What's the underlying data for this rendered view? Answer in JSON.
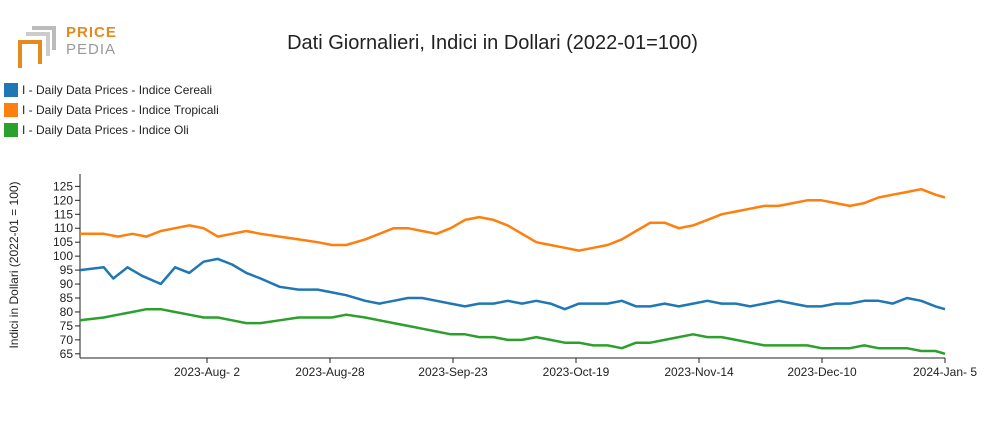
{
  "logo": {
    "line1": "PRICE",
    "line2": "PEDIA",
    "accent_color": "#e58a1f",
    "secondary_color": "#999999"
  },
  "chart_data": {
    "type": "line",
    "title": "Dati Giornalieri, Indici in Dollari (2022-01=100)",
    "xlabel": "",
    "ylabel": "Indici in Dollari (2022-01 = 100)",
    "x_tick_labels": [
      "2023-Aug- 2",
      "2023-Aug-28",
      "2023-Sep-23",
      "2023-Oct-19",
      "2023-Nov-14",
      "2023-Dec-10",
      "2024-Jan- 5"
    ],
    "y_ticks": [
      65,
      70,
      75,
      80,
      85,
      90,
      95,
      100,
      105,
      110,
      115,
      120,
      125
    ],
    "ylim": [
      63.5,
      128
    ],
    "x_range_days": [
      0,
      182
    ],
    "legend_position": "top-left",
    "grid": false,
    "series": [
      {
        "name": "I - Daily Data Prices - Indice Cereali",
        "color": "#1f77b4",
        "x": [
          0,
          5,
          7,
          10,
          13,
          17,
          20,
          23,
          26,
          29,
          32,
          35,
          38,
          42,
          46,
          50,
          53,
          56,
          60,
          63,
          66,
          69,
          72,
          75,
          78,
          81,
          84,
          87,
          90,
          93,
          96,
          99,
          102,
          105,
          108,
          111,
          114,
          117,
          120,
          123,
          126,
          129,
          132,
          135,
          138,
          141,
          144,
          147,
          150,
          153,
          156,
          159,
          162,
          165,
          168,
          171,
          174,
          177,
          180,
          182
        ],
        "y": [
          95,
          96,
          92,
          96,
          93,
          90,
          96,
          94,
          98,
          99,
          97,
          94,
          92,
          89,
          88,
          88,
          87,
          86,
          84,
          83,
          84,
          85,
          85,
          84,
          83,
          82,
          83,
          83,
          84,
          83,
          84,
          83,
          81,
          83,
          83,
          83,
          84,
          82,
          82,
          83,
          82,
          83,
          84,
          83,
          83,
          82,
          83,
          84,
          83,
          82,
          82,
          83,
          83,
          84,
          84,
          83,
          85,
          84,
          82,
          81
        ]
      },
      {
        "name": "I - Daily Data Prices - Indice Tropicali",
        "color": "#ff7f0e",
        "x": [
          0,
          5,
          8,
          11,
          14,
          17,
          20,
          23,
          26,
          29,
          32,
          35,
          38,
          42,
          46,
          50,
          53,
          56,
          60,
          63,
          66,
          69,
          72,
          75,
          78,
          81,
          84,
          87,
          90,
          93,
          96,
          99,
          102,
          105,
          108,
          111,
          114,
          117,
          120,
          123,
          126,
          129,
          132,
          135,
          138,
          141,
          144,
          147,
          150,
          153,
          156,
          159,
          162,
          165,
          168,
          171,
          174,
          177,
          180,
          182
        ],
        "y": [
          108,
          108,
          107,
          108,
          107,
          109,
          110,
          111,
          110,
          107,
          108,
          109,
          108,
          107,
          106,
          105,
          104,
          104,
          106,
          108,
          110,
          110,
          109,
          108,
          110,
          113,
          114,
          113,
          111,
          108,
          105,
          104,
          103,
          102,
          103,
          104,
          106,
          109,
          112,
          112,
          110,
          111,
          113,
          115,
          116,
          117,
          118,
          118,
          119,
          120,
          120,
          119,
          118,
          119,
          121,
          122,
          123,
          124,
          122,
          121
        ]
      },
      {
        "name": "I - Daily Data Prices - Indice Oli",
        "color": "#2ca02c",
        "x": [
          0,
          5,
          8,
          11,
          14,
          17,
          20,
          23,
          26,
          29,
          32,
          35,
          38,
          42,
          46,
          50,
          53,
          56,
          60,
          63,
          66,
          69,
          72,
          75,
          78,
          81,
          84,
          87,
          90,
          93,
          96,
          99,
          102,
          105,
          108,
          111,
          114,
          117,
          120,
          123,
          126,
          129,
          132,
          135,
          138,
          141,
          144,
          147,
          150,
          153,
          156,
          159,
          162,
          165,
          168,
          171,
          174,
          177,
          180,
          182
        ],
        "y": [
          77,
          78,
          79,
          80,
          81,
          81,
          80,
          79,
          78,
          78,
          77,
          76,
          76,
          77,
          78,
          78,
          78,
          79,
          78,
          77,
          76,
          75,
          74,
          73,
          72,
          72,
          71,
          71,
          70,
          70,
          71,
          70,
          69,
          69,
          68,
          68,
          67,
          69,
          69,
          70,
          71,
          72,
          71,
          71,
          70,
          69,
          68,
          68,
          68,
          68,
          67,
          67,
          67,
          68,
          67,
          67,
          67,
          66,
          66,
          65
        ]
      }
    ]
  }
}
